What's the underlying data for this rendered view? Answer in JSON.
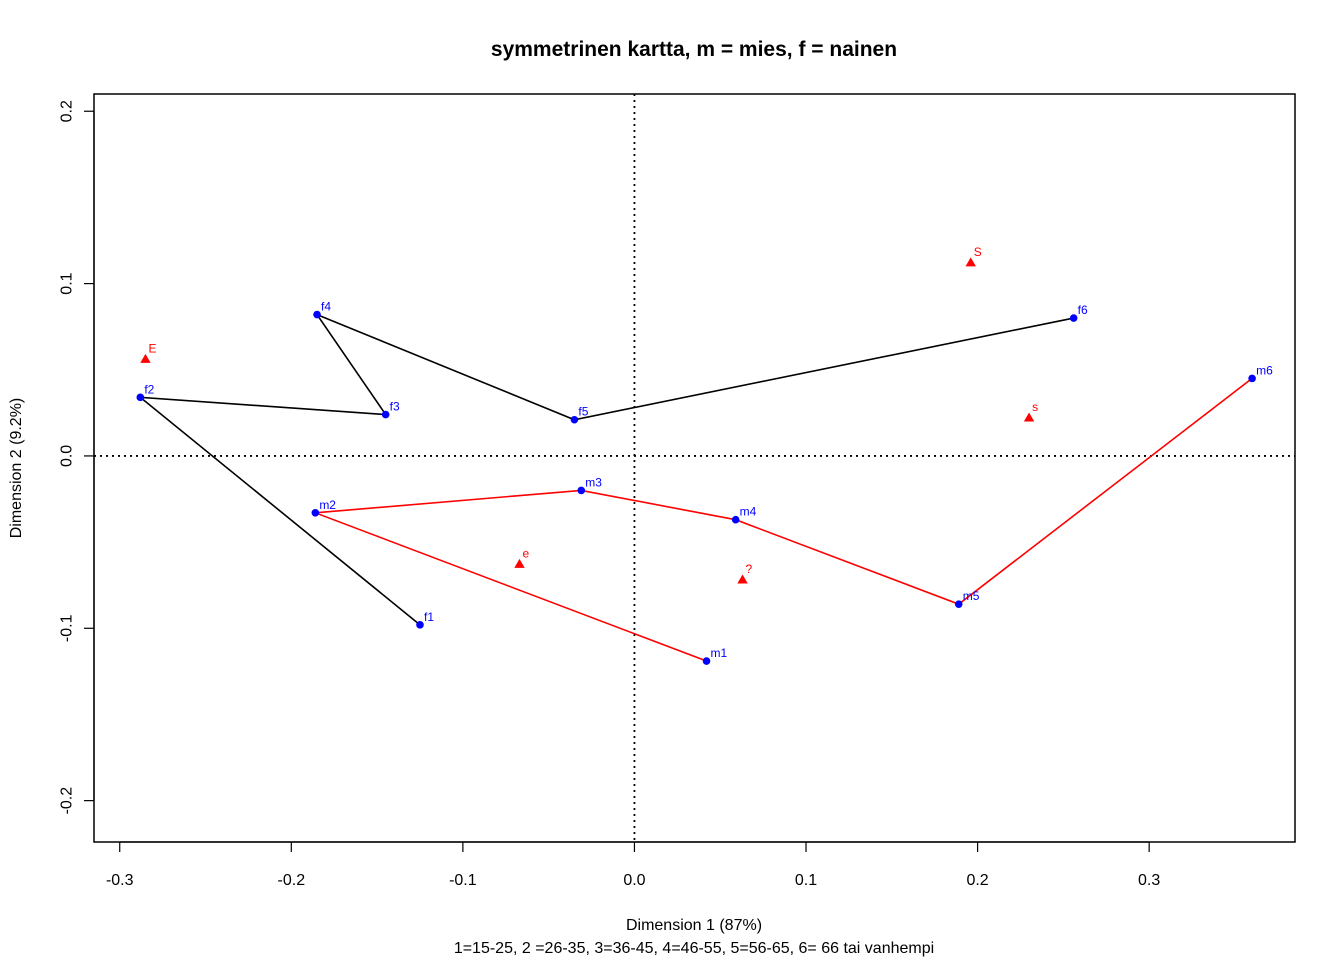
{
  "chart_data": {
    "type": "scatter",
    "title": "symmetrinen kartta, m = mies, f = nainen",
    "xlabel": "Dimension 1 (87%)",
    "xlabel_sub": "1=15-25, 2 =26-35, 3=36-45, 4=46-55, 5=56-65, 6= 66 tai vanhempi",
    "ylabel": "Dimension 2 (9.2%)",
    "xlim": [
      -0.315,
      0.385
    ],
    "ylim": [
      -0.224,
      0.21
    ],
    "xticks": [
      -0.3,
      -0.2,
      -0.1,
      0.0,
      0.1,
      0.2,
      0.3
    ],
    "xtick_labels": [
      "-0.3",
      "-0.2",
      "-0.1",
      "0.0",
      "0.1",
      "0.2",
      "0.3"
    ],
    "yticks": [
      -0.2,
      -0.1,
      0.0,
      0.1,
      0.2
    ],
    "ytick_labels": [
      "-0.2",
      "-0.1",
      "0.0",
      "0.1",
      "0.2"
    ],
    "reference_lines": {
      "x": 0,
      "y": 0,
      "style": "dotted"
    },
    "grid": false,
    "colors": {
      "row_points": "#0000ff",
      "col_points": "#ff0000",
      "f_line": "#000000",
      "m_line": "#ff0000"
    },
    "row_points": [
      {
        "label": "f1",
        "x": -0.125,
        "y": -0.098
      },
      {
        "label": "f2",
        "x": -0.288,
        "y": 0.034
      },
      {
        "label": "f3",
        "x": -0.145,
        "y": 0.024
      },
      {
        "label": "f4",
        "x": -0.185,
        "y": 0.082
      },
      {
        "label": "f5",
        "x": -0.035,
        "y": 0.021
      },
      {
        "label": "f6",
        "x": 0.256,
        "y": 0.08
      },
      {
        "label": "m1",
        "x": 0.042,
        "y": -0.119
      },
      {
        "label": "m2",
        "x": -0.186,
        "y": -0.033
      },
      {
        "label": "m3",
        "x": -0.031,
        "y": -0.02
      },
      {
        "label": "m4",
        "x": 0.059,
        "y": -0.037
      },
      {
        "label": "m5",
        "x": 0.189,
        "y": -0.086
      },
      {
        "label": "m6",
        "x": 0.36,
        "y": 0.045
      }
    ],
    "col_points": [
      {
        "label": "E",
        "x": -0.285,
        "y": 0.056
      },
      {
        "label": "e",
        "x": -0.067,
        "y": -0.063
      },
      {
        "label": "?",
        "x": 0.063,
        "y": -0.072
      },
      {
        "label": "S",
        "x": 0.196,
        "y": 0.112
      },
      {
        "label": "s",
        "x": 0.23,
        "y": 0.022
      }
    ],
    "series": [
      {
        "points": [
          "f1",
          "f2",
          "f3",
          "f4",
          "f5",
          "f6"
        ],
        "color": "#000000"
      },
      {
        "points": [
          "m1",
          "m2",
          "m3",
          "m4",
          "m5",
          "m6"
        ],
        "color": "#ff0000"
      }
    ]
  }
}
